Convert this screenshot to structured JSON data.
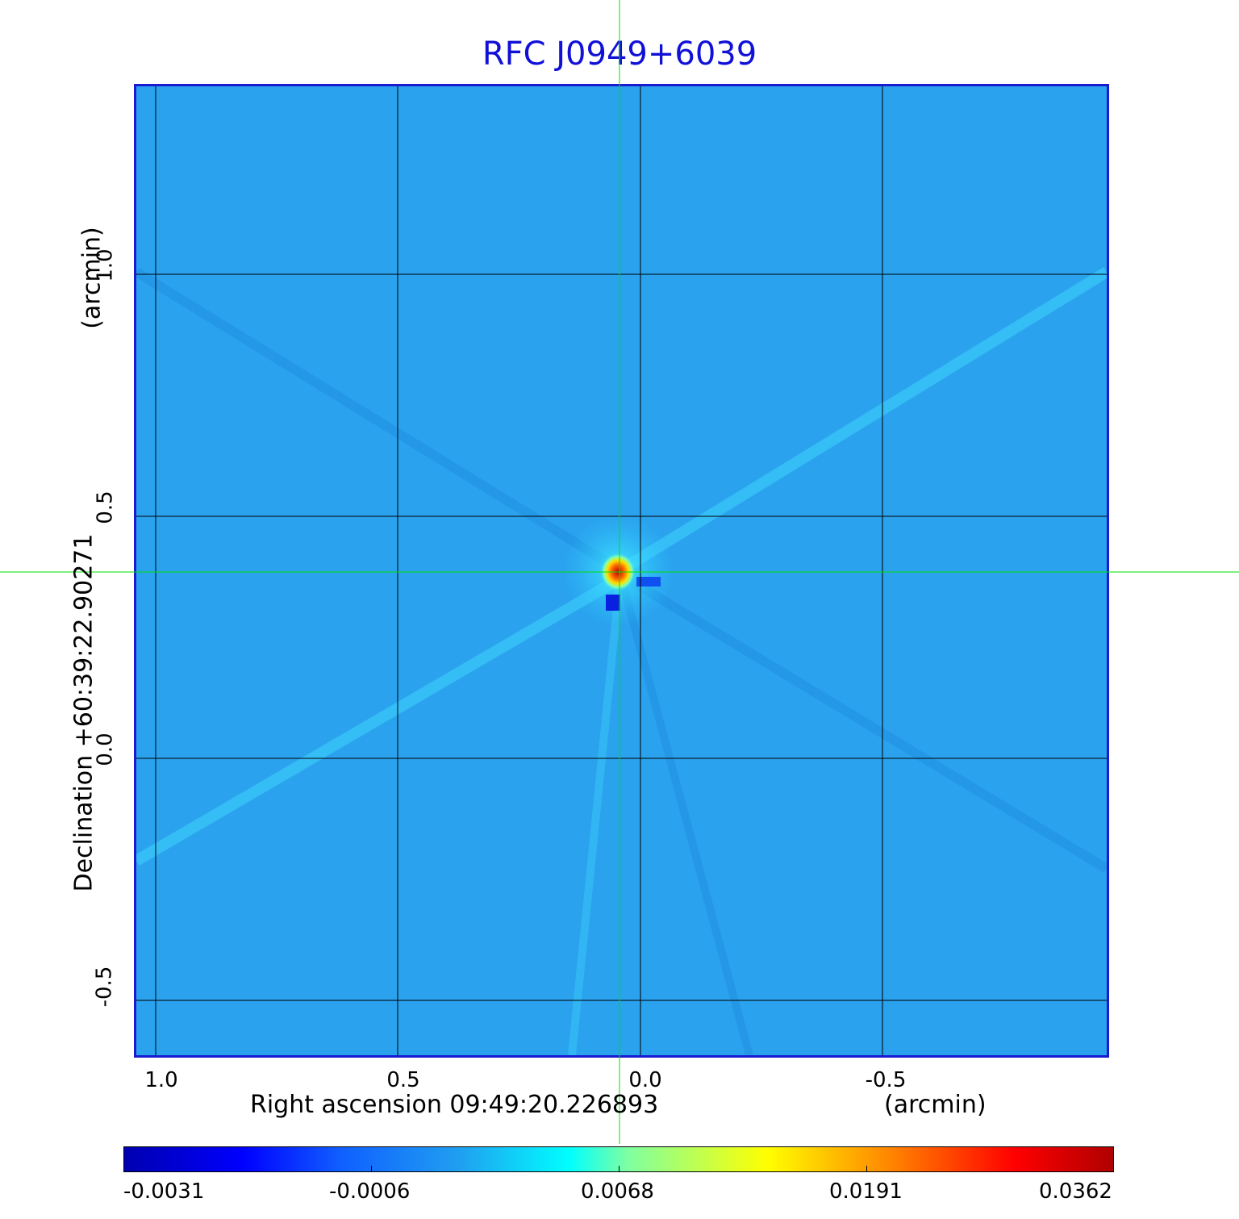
{
  "title": "RFC J0949+6039",
  "axes": {
    "x_label": "Right ascension  09:49:20.226893",
    "x_unit": "(arcmin)",
    "y_label": "Declination  +60:39:22.90271",
    "y_unit": "(arcmin)",
    "x_ticks": [
      "1.0",
      "0.5",
      "0.0",
      "-0.5"
    ],
    "y_ticks": [
      "1.0",
      "0.5",
      "0.0",
      "-0.5"
    ]
  },
  "colorbar": {
    "ticks": [
      "-0.0031",
      "-0.0006",
      "0.0068",
      "0.0191",
      "0.0362"
    ]
  },
  "colors": {
    "title": "#1010d8",
    "frame": "#1a1ad0",
    "background_map": "#2aa2ee",
    "crosshair": "#00e000"
  }
}
